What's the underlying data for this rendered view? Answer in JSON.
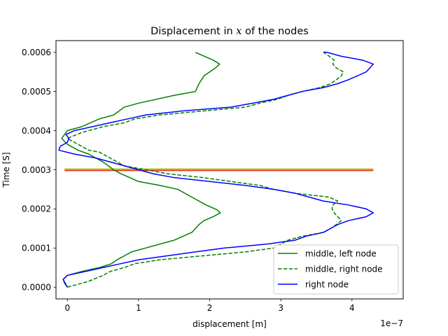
{
  "chart_data": {
    "type": "line",
    "title_prefix": "Displacement in ",
    "title_var": "x",
    "title_suffix": " of the nodes",
    "xlabel": "displacement [m]",
    "ylabel": "Time [S]",
    "x_offset_text": "1e−7",
    "x_scale": 1e-07,
    "xlim": [
      -0.16,
      4.72
    ],
    "ylim": [
      -3e-05,
      0.00063
    ],
    "x_ticks": [
      0,
      1,
      2,
      3,
      4
    ],
    "x_tick_labels": [
      "0",
      "1",
      "2",
      "3",
      "4"
    ],
    "y_ticks": [
      0,
      0.0001,
      0.0002,
      0.0003,
      0.0004,
      0.0005,
      0.0006
    ],
    "y_tick_labels": [
      "0.0000",
      "0.0001",
      "0.0002",
      "0.0003",
      "0.0004",
      "0.0005",
      "0.0006"
    ],
    "grid": false,
    "legend_position": "lower right",
    "series": [
      {
        "name": "middle, left node",
        "color": "#008000",
        "dash": "solid",
        "points": [
          [
            0.0,
            0.0
          ],
          [
            -0.04,
            1e-05
          ],
          [
            -0.06,
            2e-05
          ],
          [
            0.0,
            3e-05
          ],
          [
            0.2,
            4e-05
          ],
          [
            0.45,
            5e-05
          ],
          [
            0.62,
            6e-05
          ],
          [
            0.7,
            7e-05
          ],
          [
            0.8,
            8e-05
          ],
          [
            0.9,
            9e-05
          ],
          [
            1.1,
            0.0001
          ],
          [
            1.5,
            0.00012
          ],
          [
            1.75,
            0.00014
          ],
          [
            1.8,
            0.00015
          ],
          [
            1.85,
            0.00016
          ],
          [
            1.92,
            0.00017
          ],
          [
            2.05,
            0.00018
          ],
          [
            2.15,
            0.00019
          ],
          [
            2.1,
            0.000198
          ],
          [
            1.95,
            0.00021
          ],
          [
            1.75,
            0.00023
          ],
          [
            1.55,
            0.00025
          ],
          [
            1.3,
            0.00026
          ],
          [
            1.0,
            0.00027
          ],
          [
            0.75,
            0.00029
          ],
          [
            0.65,
            0.0003
          ],
          [
            0.5,
            0.00032
          ],
          [
            0.3,
            0.00034
          ],
          [
            0.15,
            0.00035
          ],
          [
            0.0,
            0.000365
          ],
          [
            -0.08,
            0.00038
          ],
          [
            -0.04,
            0.00039
          ],
          [
            0.0,
            0.0004
          ],
          [
            0.2,
            0.00041
          ],
          [
            0.45,
            0.00043
          ],
          [
            0.65,
            0.00044
          ],
          [
            0.8,
            0.00046
          ],
          [
            1.0,
            0.00047
          ],
          [
            1.5,
            0.00049
          ],
          [
            1.8,
            0.0005
          ],
          [
            1.85,
            0.00052
          ],
          [
            1.92,
            0.00054
          ],
          [
            2.08,
            0.00056
          ],
          [
            2.14,
            0.00057
          ],
          [
            2.05,
            0.00058
          ],
          [
            1.8,
            0.0006
          ]
        ]
      },
      {
        "name": "middle, right node",
        "color": "#008000",
        "dash": "dashed",
        "points": [
          [
            0.0,
            0.0
          ],
          [
            0.1,
            5e-06
          ],
          [
            0.3,
            1.5e-05
          ],
          [
            0.5,
            3e-05
          ],
          [
            0.6,
            4e-05
          ],
          [
            0.8,
            5e-05
          ],
          [
            0.95,
            6e-05
          ],
          [
            1.3,
            7e-05
          ],
          [
            1.9,
            8e-05
          ],
          [
            2.5,
            9e-05
          ],
          [
            2.9,
            0.0001
          ],
          [
            3.0,
            0.00011
          ],
          [
            3.1,
            0.00012
          ],
          [
            3.3,
            0.00013
          ],
          [
            3.6,
            0.00014
          ],
          [
            3.7,
            0.00015
          ],
          [
            3.78,
            0.00016
          ],
          [
            3.85,
            0.00017
          ],
          [
            3.8,
            0.00018
          ],
          [
            3.75,
            0.00019
          ],
          [
            3.72,
            0.0002
          ],
          [
            3.73,
            0.00021
          ],
          [
            3.8,
            0.00022
          ],
          [
            3.68,
            0.00023
          ],
          [
            3.2,
            0.00024
          ],
          [
            2.9,
            0.00025
          ],
          [
            2.7,
            0.00026
          ],
          [
            2.3,
            0.00027
          ],
          [
            1.9,
            0.00028
          ],
          [
            1.4,
            0.00029
          ],
          [
            1.1,
            0.0003
          ],
          [
            0.8,
            0.00031
          ],
          [
            0.6,
            0.00033
          ],
          [
            0.45,
            0.000345
          ],
          [
            0.3,
            0.00035
          ],
          [
            0.15,
            0.000365
          ],
          [
            0.0,
            0.00038
          ],
          [
            0.2,
            0.000395
          ],
          [
            0.5,
            0.00041
          ],
          [
            0.8,
            0.00042
          ],
          [
            0.95,
            0.00043
          ],
          [
            1.3,
            0.00044
          ],
          [
            1.9,
            0.00045
          ],
          [
            2.5,
            0.00046
          ],
          [
            2.7,
            0.00047
          ],
          [
            2.95,
            0.00048
          ],
          [
            3.1,
            0.00049
          ],
          [
            3.3,
            0.0005
          ],
          [
            3.55,
            0.00051
          ],
          [
            3.7,
            0.00052
          ],
          [
            3.78,
            0.00053
          ],
          [
            3.85,
            0.00054
          ],
          [
            3.88,
            0.00055
          ],
          [
            3.78,
            0.00056
          ],
          [
            3.73,
            0.00057
          ],
          [
            3.75,
            0.00058
          ],
          [
            3.68,
            0.00059
          ],
          [
            3.6,
            0.0006
          ]
        ]
      },
      {
        "name": "right node",
        "color": "#0000ff",
        "dash": "solid",
        "points": [
          [
            0.0,
            0.0
          ],
          [
            -0.03,
            1e-05
          ],
          [
            -0.06,
            2e-05
          ],
          [
            0.0,
            3e-05
          ],
          [
            0.25,
            4e-05
          ],
          [
            0.5,
            5e-05
          ],
          [
            0.75,
            6e-05
          ],
          [
            1.0,
            7e-05
          ],
          [
            1.4,
            8e-05
          ],
          [
            1.8,
            9e-05
          ],
          [
            2.2,
            0.0001
          ],
          [
            2.8,
            0.00011
          ],
          [
            3.2,
            0.00012
          ],
          [
            3.35,
            0.00013
          ],
          [
            3.6,
            0.00014
          ],
          [
            3.7,
            0.00015
          ],
          [
            3.8,
            0.00016
          ],
          [
            3.95,
            0.00017
          ],
          [
            4.2,
            0.00018
          ],
          [
            4.3,
            0.00019
          ],
          [
            4.2,
            0.0002
          ],
          [
            3.95,
            0.00021
          ],
          [
            3.6,
            0.00022
          ],
          [
            3.4,
            0.00023
          ],
          [
            3.2,
            0.00024
          ],
          [
            2.9,
            0.00025
          ],
          [
            2.5,
            0.00026
          ],
          [
            2.0,
            0.00027
          ],
          [
            1.5,
            0.00028
          ],
          [
            1.2,
            0.00029
          ],
          [
            0.8,
            0.00031
          ],
          [
            0.4,
            0.00033
          ],
          [
            0.1,
            0.00034
          ],
          [
            -0.12,
            0.00035
          ],
          [
            -0.1,
            0.00036
          ],
          [
            0.0,
            0.00037
          ],
          [
            0.02,
            0.00038
          ],
          [
            -0.02,
            0.00039
          ],
          [
            0.1,
            0.0004
          ],
          [
            0.35,
            0.00041
          ],
          [
            0.6,
            0.00042
          ],
          [
            0.85,
            0.00043
          ],
          [
            1.1,
            0.00044
          ],
          [
            1.6,
            0.00045
          ],
          [
            2.3,
            0.00046
          ],
          [
            2.6,
            0.00047
          ],
          [
            2.9,
            0.00048
          ],
          [
            3.1,
            0.00049
          ],
          [
            3.3,
            0.0005
          ],
          [
            3.6,
            0.00051
          ],
          [
            3.8,
            0.00052
          ],
          [
            3.95,
            0.00053
          ],
          [
            4.2,
            0.00055
          ],
          [
            4.3,
            0.00057
          ],
          [
            4.15,
            0.00058
          ],
          [
            3.85,
            0.00059
          ],
          [
            3.65,
            0.0006
          ],
          [
            3.6,
            0.000601
          ]
        ]
      }
    ],
    "reference_lines": [
      {
        "y": 0.000298,
        "color": "#d62728"
      },
      {
        "y": 0.0003,
        "color": "#ff7f0e"
      },
      {
        "y": 0.000302,
        "color": "#bcbd22"
      }
    ],
    "reference_line_xrange": [
      -0.04,
      4.3
    ]
  }
}
